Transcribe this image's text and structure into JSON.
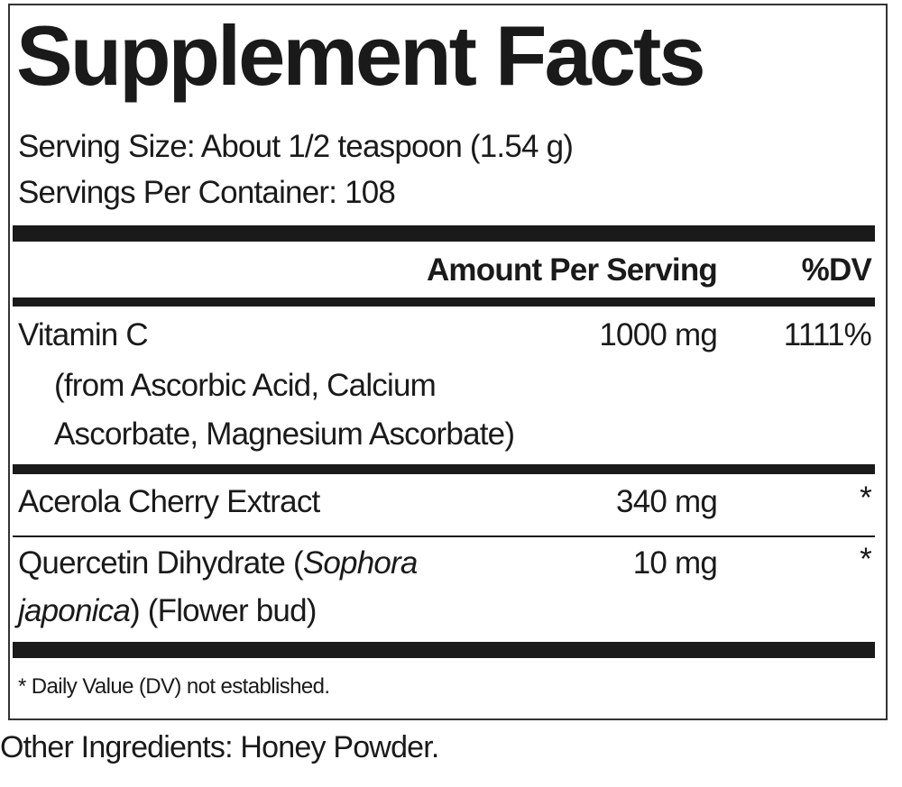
{
  "title": "Supplement Facts",
  "serving_size": "Serving Size: About 1/2 teaspoon (1.54 g)",
  "servings_per_container": "Servings Per Container: 108",
  "header": {
    "amount": "Amount Per Serving",
    "dv": "%DV"
  },
  "rows": [
    {
      "name": "Vitamin C",
      "detail_1": "(from Ascorbic Acid, Calcium",
      "detail_2": "Ascorbate, Magnesium Ascorbate)",
      "amount": "1000 mg",
      "dv": "1111%"
    },
    {
      "name": "Acerola Cherry Extract",
      "amount": "340 mg",
      "dv": "*"
    },
    {
      "name_1": "Quercetin Dihydrate (",
      "name_italic_1": "Sophora",
      "name_italic_2": "japonica",
      "name_2": ") (Flower bud)",
      "amount": "10 mg",
      "dv": "*"
    }
  ],
  "footnote": "* Daily Value (DV) not established.",
  "other_ingredients": "Other Ingredients: Honey Powder."
}
